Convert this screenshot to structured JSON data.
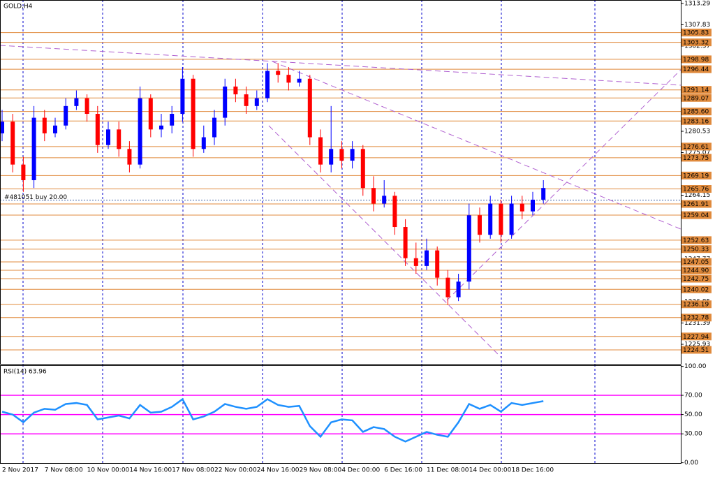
{
  "chart_data": [
    {
      "type": "candlestick",
      "title": "GOLD,H4",
      "categories": [
        "2 Nov 2017",
        null,
        null,
        null,
        "7 Nov 08:00",
        null,
        null,
        null,
        "10 Nov 00:00",
        null,
        null,
        null,
        "14 Nov 16:00",
        null,
        null,
        null,
        "17 Nov 08:00",
        null,
        null,
        null,
        "22 Nov 00:00",
        null,
        null,
        null,
        "24 Nov 16:00",
        null,
        null,
        null,
        "29 Nov 08:00",
        null,
        null,
        null,
        "4 Dec 00:00",
        null,
        null,
        null,
        "6 Dec 16:00",
        null,
        null,
        null,
        "11 Dec 08:00",
        null,
        null,
        null,
        "14 Dec 00:00",
        null,
        null,
        null,
        "18 Dec 16:00",
        null,
        null,
        null
      ],
      "open": [
        1280,
        1283,
        1272,
        1268,
        1284,
        1280,
        1282,
        1287,
        1289,
        1285,
        1277,
        1281,
        1276,
        1272,
        1289,
        1281,
        1282,
        1285,
        1294,
        1276,
        1279,
        1284,
        1292,
        1290,
        1287,
        1289,
        1296,
        1295,
        1293,
        1294,
        1279,
        1272,
        1276,
        1273,
        1276,
        1266,
        1262,
        1264,
        1256,
        1248,
        1246,
        1250,
        1243,
        1238,
        1242,
        1259,
        1254,
        1262,
        1254,
        1262,
        1260,
        1263
      ],
      "high": [
        1286,
        1285,
        1274,
        1287,
        1286,
        1284,
        1289,
        1291,
        1290,
        1287,
        1283,
        1283,
        1278,
        1292,
        1290,
        1285,
        1287,
        1297,
        1295,
        1282,
        1286,
        1294,
        1294,
        1292,
        1291,
        1298,
        1298,
        1297,
        1296,
        1295,
        1281,
        1287,
        1278,
        1278,
        1277,
        1269,
        1268,
        1265,
        1258,
        1252,
        1253,
        1251,
        1245,
        1244,
        1262,
        1261,
        1264,
        1263,
        1264,
        1264,
        1265,
        1268
      ],
      "low": [
        1278,
        1270,
        1265,
        1266,
        1278,
        1279,
        1281,
        1286,
        1283,
        1275,
        1276,
        1274,
        1270,
        1271,
        1279,
        1279,
        1280,
        1283,
        1274,
        1275,
        1277,
        1282,
        1288,
        1285,
        1286,
        1288,
        1293,
        1291,
        1292,
        1277,
        1270,
        1270,
        1271,
        1271,
        1264,
        1260,
        1261,
        1254,
        1246,
        1244,
        1245,
        1241,
        1236,
        1237,
        1240,
        1252,
        1253,
        1252,
        1253,
        1258,
        1259,
        1262
      ],
      "close": [
        1283,
        1272,
        1268,
        1284,
        1280,
        1282,
        1287,
        1289,
        1285,
        1277,
        1281,
        1276,
        1272,
        1289,
        1281,
        1282,
        1285,
        1294,
        1276,
        1279,
        1284,
        1292,
        1290,
        1287,
        1289,
        1296,
        1295,
        1293,
        1294,
        1279,
        1272,
        1276,
        1273,
        1276,
        1266,
        1262,
        1264,
        1256,
        1248,
        1246,
        1250,
        1243,
        1238,
        1242,
        1259,
        1254,
        1262,
        1254,
        1262,
        1260,
        1263,
        1266
      ],
      "up_color": "#0000ff",
      "down_color": "#ff0000",
      "ylim": [
        1220.92,
        1314.18
      ],
      "yticks": [
        1313.29,
        1307.83,
        1302.37,
        1280.53,
        1275.07,
        1264.15,
        1247.77,
        1236.85,
        1231.39,
        1225.93
      ],
      "levels": [
        1305.83,
        1303.32,
        1298.98,
        1296.44,
        1291.14,
        1289.07,
        {
          "value": 1285.6,
          "label": "1285.60"
        },
        1283.16,
        1276.61,
        1273.75,
        1269.19,
        1265.76,
        1261.91,
        1259.04,
        1252.63,
        1250.33,
        1247.05,
        {
          "value": 1244.9,
          "label": "1244.90"
        },
        1242.75,
        1240.02,
        1236.19,
        1232.78,
        1227.94,
        1224.51
      ],
      "level_color": "#e08a3c",
      "order": {
        "label": "#481051 buy 20.00",
        "value": 1262.9
      }
    },
    {
      "type": "line",
      "title": "RSI(14) 63.96",
      "values": [
        53,
        50,
        42,
        52,
        56,
        55,
        61,
        62,
        60,
        45,
        47,
        49,
        46,
        60,
        52,
        53,
        58,
        66,
        45,
        48,
        53,
        61,
        58,
        56,
        58,
        66,
        60,
        58,
        59,
        38,
        27,
        42,
        45,
        44,
        32,
        37,
        35,
        27,
        22,
        27,
        32,
        29,
        27,
        42,
        61,
        56,
        60,
        53,
        62,
        60,
        62,
        63.96
      ],
      "color": "#1e90ff",
      "ylim": [
        -0.3,
        101.2
      ],
      "yticks": [
        {
          "value": 100,
          "label": "100.00"
        },
        {
          "value": 70,
          "label": "70.00"
        },
        {
          "value": 50,
          "label": "50.00"
        },
        {
          "value": 30,
          "label": "30.00"
        },
        {
          "value": 0,
          "label": "0.00"
        }
      ],
      "levels": [
        70,
        50,
        30
      ],
      "level_color": "#ff00ff"
    }
  ]
}
